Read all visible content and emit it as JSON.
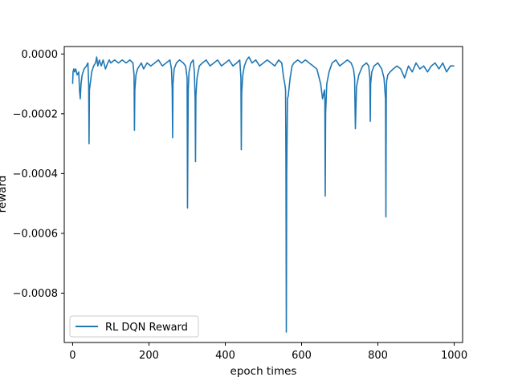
{
  "chart_data": {
    "type": "line",
    "title": "",
    "xlabel": "epoch times",
    "ylabel": "reward",
    "xlim": [
      -22,
      1022
    ],
    "ylim": [
      -0.000965,
      2.5e-05
    ],
    "xticks": [
      0,
      200,
      400,
      600,
      800,
      1000
    ],
    "xtick_labels": [
      "0",
      "200",
      "400",
      "600",
      "800",
      "1000"
    ],
    "yticks": [
      0.0,
      -0.0002,
      -0.0004,
      -0.0006,
      -0.0008
    ],
    "ytick_labels": [
      "0.0000",
      "−0.0002",
      "−0.0004",
      "−0.0006",
      "−0.0008"
    ],
    "grid": false,
    "legend_position": "lower-left",
    "series": [
      {
        "name": "RL DQN Reward",
        "color": "#1f77b4",
        "x": [
          0,
          1,
          3,
          5,
          8,
          12,
          16,
          18,
          20,
          22,
          25,
          30,
          36,
          40,
          42,
          43,
          44,
          46,
          50,
          55,
          60,
          63,
          66,
          70,
          75,
          80,
          86,
          92,
          96,
          100,
          110,
          120,
          130,
          140,
          150,
          158,
          161,
          162,
          163,
          166,
          170,
          175,
          180,
          186,
          195,
          205,
          215,
          225,
          235,
          245,
          255,
          259,
          261,
          262,
          263,
          266,
          272,
          280,
          290,
          296,
          300,
          301,
          302,
          303,
          305,
          310,
          316,
          319,
          321,
          322,
          323,
          326,
          332,
          340,
          350,
          360,
          370,
          380,
          390,
          400,
          410,
          420,
          430,
          438,
          441,
          442,
          443,
          446,
          450,
          456,
          462,
          470,
          480,
          490,
          500,
          510,
          520,
          530,
          540,
          548,
          553,
          556,
          558,
          559,
          560,
          561,
          563,
          565,
          570,
          575,
          580,
          590,
          600,
          610,
          620,
          630,
          640,
          650,
          655,
          660,
          661,
          662,
          663,
          666,
          672,
          680,
          690,
          700,
          710,
          720,
          730,
          736,
          739,
          740,
          741,
          744,
          750,
          760,
          770,
          776,
          779,
          780,
          781,
          784,
          790,
          800,
          810,
          816,
          820,
          821,
          822,
          823,
          826,
          832,
          840,
          850,
          860,
          870,
          880,
          890,
          900,
          910,
          920,
          930,
          940,
          950,
          960,
          970,
          980,
          990,
          1000
        ],
        "y": [
          -0.0001,
          -6e-05,
          -5e-05,
          -6e-05,
          -5e-05,
          -7e-05,
          -6e-05,
          -0.00012,
          -0.00015,
          -0.0001,
          -7e-05,
          -5e-05,
          -4e-05,
          -3e-05,
          -0.0001,
          -0.0003,
          -0.00012,
          -0.0001,
          -6e-05,
          -4e-05,
          -3e-05,
          -1e-05,
          -4e-05,
          -2e-05,
          -4e-05,
          -2e-05,
          -5e-05,
          -3e-05,
          -2e-05,
          -3e-05,
          -2e-05,
          -3e-05,
          -2e-05,
          -3e-05,
          -2e-05,
          -3e-05,
          -7e-05,
          -0.000255,
          -0.00012,
          -7e-05,
          -5e-05,
          -4e-05,
          -3e-05,
          -5e-05,
          -3e-05,
          -4e-05,
          -3e-05,
          -2e-05,
          -4e-05,
          -3e-05,
          -2e-05,
          -5e-05,
          -0.00012,
          -0.00028,
          -0.0001,
          -5e-05,
          -3e-05,
          -2e-05,
          -3e-05,
          -4e-05,
          -8e-05,
          -0.000515,
          -0.0003,
          -0.00012,
          -6e-05,
          -3e-05,
          -2e-05,
          -6e-05,
          -0.00015,
          -0.00036,
          -0.00014,
          -8e-05,
          -4e-05,
          -3e-05,
          -2e-05,
          -4e-05,
          -3e-05,
          -2e-05,
          -4e-05,
          -3e-05,
          -2e-05,
          -4e-05,
          -3e-05,
          -2e-05,
          -8e-05,
          -0.00032,
          -0.00013,
          -7e-05,
          -4e-05,
          -2e-05,
          -1e-05,
          -3e-05,
          -2e-05,
          -4e-05,
          -3e-05,
          -2e-05,
          -3e-05,
          -4e-05,
          -2e-05,
          -3e-05,
          -8e-05,
          -0.0001,
          -0.00012,
          -0.00035,
          -0.00093,
          -0.0004,
          -0.00015,
          -0.00014,
          -8e-05,
          -4e-05,
          -3e-05,
          -2e-05,
          -3e-05,
          -2e-05,
          -3e-05,
          -4e-05,
          -5e-05,
          -0.0001,
          -0.00015,
          -0.00012,
          -0.00015,
          -0.000475,
          -0.0002,
          -0.0001,
          -6e-05,
          -3e-05,
          -2e-05,
          -4e-05,
          -3e-05,
          -2e-05,
          -3e-05,
          -5e-05,
          -8e-05,
          -0.00017,
          -0.00025,
          -0.00011,
          -7e-05,
          -4e-05,
          -3e-05,
          -4e-05,
          -8e-05,
          -0.000225,
          -0.0001,
          -6e-05,
          -4e-05,
          -3e-05,
          -5e-05,
          -8e-05,
          -0.00015,
          -0.000545,
          -0.00012,
          -9e-05,
          -7e-05,
          -6e-05,
          -5e-05,
          -4e-05,
          -5e-05,
          -8e-05,
          -4e-05,
          -6e-05,
          -3e-05,
          -5e-05,
          -4e-05,
          -6e-05,
          -4e-05,
          -3e-05,
          -5e-05,
          -3e-05,
          -6e-05,
          -4e-05,
          -4e-05
        ]
      }
    ]
  }
}
